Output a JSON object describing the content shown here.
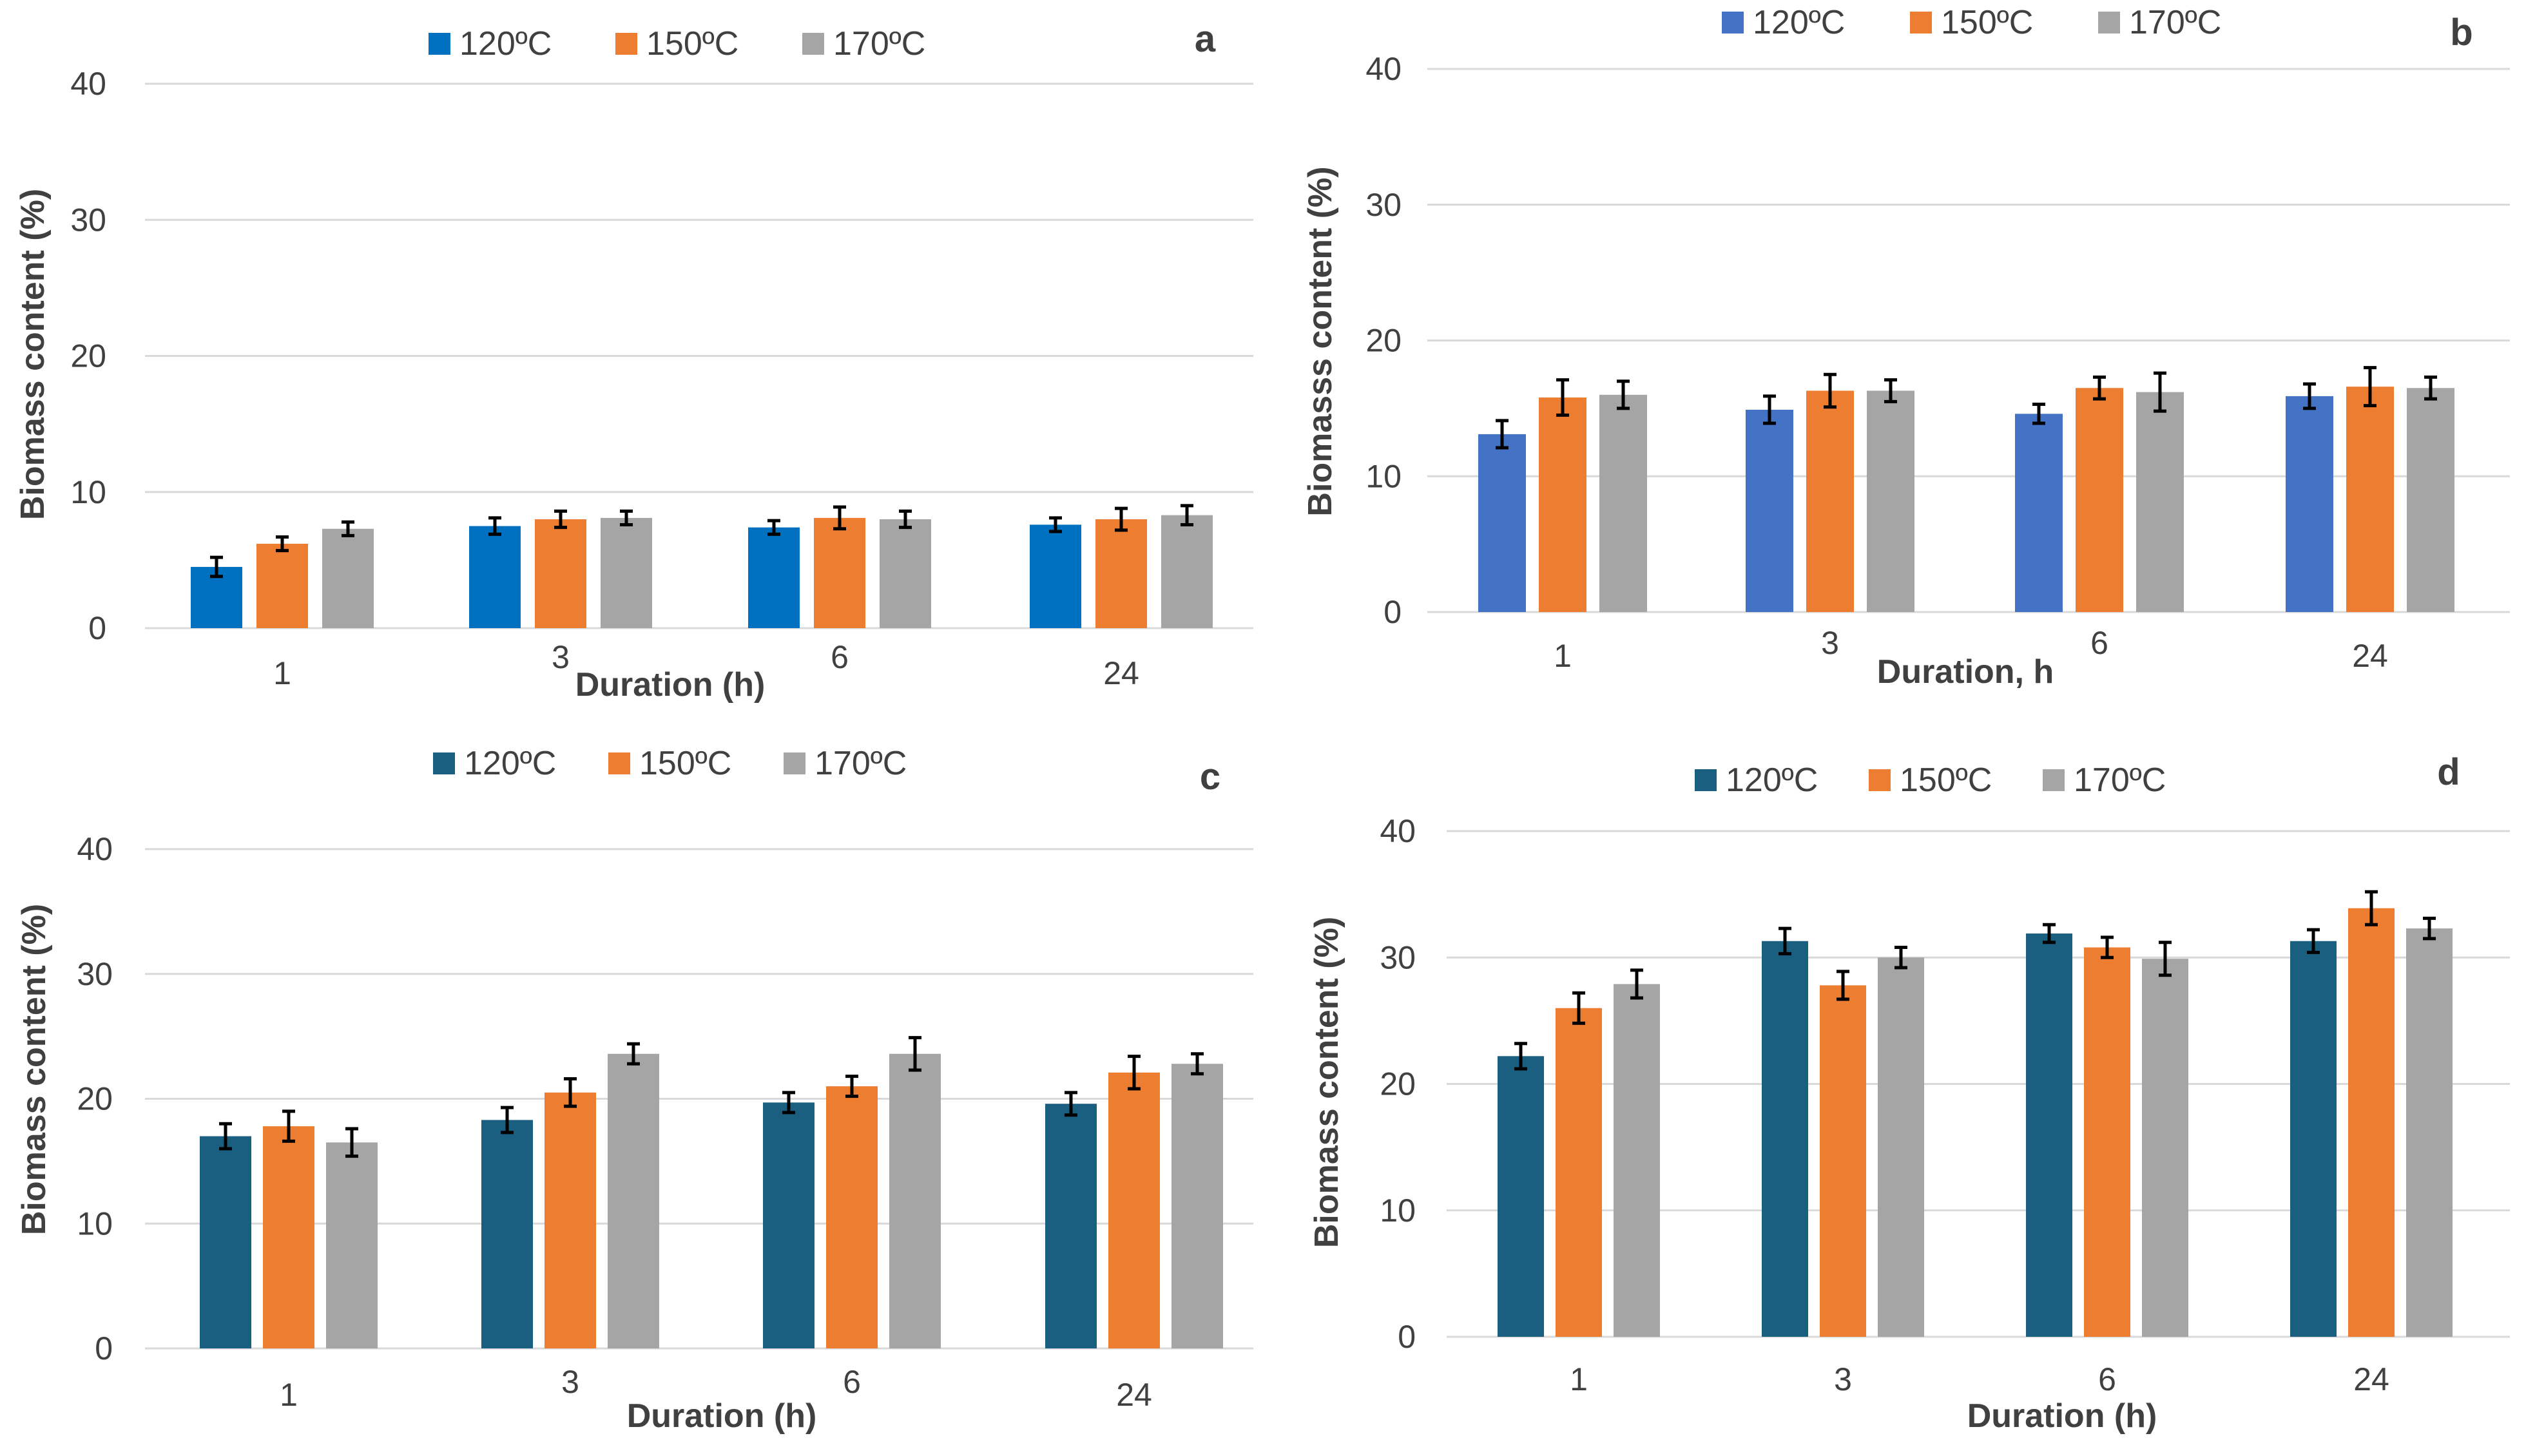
{
  "chart_data": [
    {
      "type": "bar",
      "panel_label": "a",
      "categories": [
        "1",
        "3",
        "6",
        "24"
      ],
      "xlabel": "Duration (h)",
      "ylabel": "Biomass content  (%)",
      "ylim": [
        0,
        40
      ],
      "yticks": [
        "0",
        "10",
        "20",
        "30",
        "40"
      ],
      "legend_position": "top",
      "grid": true,
      "series": [
        {
          "name": "120ºC",
          "color": "#0070c0",
          "values": [
            4.5,
            7.5,
            7.4,
            7.6
          ],
          "errors": [
            0.7,
            0.6,
            0.5,
            0.5
          ]
        },
        {
          "name": "150ºC",
          "color": "#ed7d31",
          "values": [
            6.2,
            8.0,
            8.1,
            8.0
          ],
          "errors": [
            0.5,
            0.6,
            0.8,
            0.8
          ]
        },
        {
          "name": "170ºC",
          "color": "#a5a5a5",
          "values": [
            7.3,
            8.1,
            8.0,
            8.3
          ],
          "errors": [
            0.5,
            0.5,
            0.6,
            0.7
          ]
        }
      ]
    },
    {
      "type": "bar",
      "panel_label": "b",
      "categories": [
        "1",
        "3",
        "6",
        "24"
      ],
      "xlabel": "Duration, h",
      "ylabel": "Biomasss content (%)",
      "ylim": [
        0,
        40
      ],
      "yticks": [
        "0",
        "10",
        "20",
        "30",
        "40"
      ],
      "legend_position": "top",
      "grid": true,
      "series": [
        {
          "name": "120ºC",
          "color": "#4472c4",
          "values": [
            13.1,
            14.9,
            14.6,
            15.9
          ],
          "errors": [
            1.0,
            1.0,
            0.7,
            0.9
          ]
        },
        {
          "name": "150ºC",
          "color": "#ed7d31",
          "values": [
            15.8,
            16.3,
            16.5,
            16.6
          ],
          "errors": [
            1.3,
            1.2,
            0.8,
            1.4
          ]
        },
        {
          "name": "170ºC",
          "color": "#a5a5a5",
          "values": [
            16.0,
            16.3,
            16.2,
            16.5
          ],
          "errors": [
            1.0,
            0.8,
            1.4,
            0.8
          ]
        }
      ]
    },
    {
      "type": "bar",
      "panel_label": "c",
      "categories": [
        "1",
        "3",
        "6",
        "24"
      ],
      "xlabel": "Duration (h)",
      "ylabel": "Biomass content  (%)",
      "ylim": [
        0,
        40
      ],
      "yticks": [
        "0",
        "10",
        "20",
        "30",
        "40"
      ],
      "legend_position": "top",
      "grid": true,
      "series": [
        {
          "name": "120ºC",
          "color": "#1a5e80",
          "values": [
            17.0,
            18.3,
            19.7,
            19.6
          ],
          "errors": [
            1.0,
            1.0,
            0.8,
            0.9
          ]
        },
        {
          "name": "150ºC",
          "color": "#ed7d31",
          "values": [
            17.8,
            20.5,
            21.0,
            22.1
          ],
          "errors": [
            1.2,
            1.1,
            0.8,
            1.3
          ]
        },
        {
          "name": "170ºC",
          "color": "#a5a5a5",
          "values": [
            16.5,
            23.6,
            23.6,
            22.8
          ],
          "errors": [
            1.1,
            0.8,
            1.3,
            0.8
          ]
        }
      ]
    },
    {
      "type": "bar",
      "panel_label": "d",
      "categories": [
        "1",
        "3",
        "6",
        "24"
      ],
      "xlabel": "Duration (h)",
      "ylabel": "Biomass  content (%)",
      "ylim": [
        0,
        40
      ],
      "yticks": [
        "0",
        "10",
        "20",
        "30",
        "40"
      ],
      "legend_position": "top",
      "grid": true,
      "series": [
        {
          "name": "120ºC",
          "color": "#1a5e80",
          "values": [
            22.2,
            31.3,
            31.9,
            31.3
          ],
          "errors": [
            1.0,
            1.0,
            0.7,
            0.9
          ]
        },
        {
          "name": "150ºC",
          "color": "#ed7d31",
          "values": [
            26.0,
            27.8,
            30.8,
            33.9
          ],
          "errors": [
            1.2,
            1.1,
            0.8,
            1.3
          ]
        },
        {
          "name": "170ºC",
          "color": "#a5a5a5",
          "values": [
            27.9,
            30.0,
            29.9,
            32.3
          ],
          "errors": [
            1.1,
            0.8,
            1.3,
            0.8
          ]
        }
      ]
    }
  ]
}
